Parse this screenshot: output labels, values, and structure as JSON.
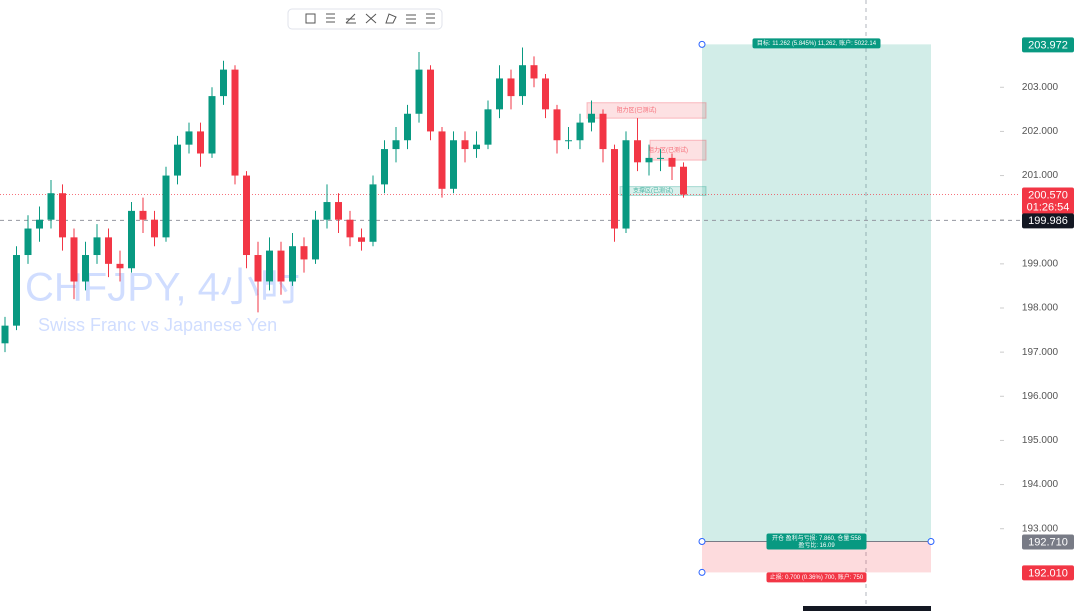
{
  "chart_data": {
    "type": "candlestick",
    "watermark_title": "CHFJPY, 4小时",
    "watermark_subtitle": "Swiss Franc vs Japanese Yen",
    "up_color": "#089981",
    "down_color": "#f23645",
    "open": [
      197.2,
      197.6,
      199.2,
      199.8,
      200.0,
      200.6,
      199.6,
      198.6,
      199.2,
      199.6,
      199.0,
      198.9,
      200.2,
      200.0,
      199.6,
      201.0,
      201.7,
      202.0,
      201.5,
      202.8,
      203.4,
      201.0,
      199.2,
      198.6,
      199.3,
      198.6,
      199.4,
      199.1,
      200.0,
      200.4,
      200.0,
      199.6,
      199.5,
      200.8,
      201.6,
      201.8,
      202.4,
      203.4,
      202.0,
      200.7,
      201.8,
      201.6,
      201.7,
      202.5,
      203.2,
      202.8,
      203.5,
      203.2,
      202.5,
      201.8,
      201.8,
      202.2,
      202.4,
      201.6,
      199.8,
      201.8,
      201.3,
      201.4,
      201.4,
      201.2
    ],
    "high": [
      197.8,
      199.4,
      200.1,
      200.3,
      200.9,
      200.8,
      199.8,
      199.5,
      199.9,
      199.8,
      199.3,
      200.4,
      200.5,
      200.2,
      201.2,
      201.9,
      202.2,
      202.2,
      203.0,
      203.6,
      203.5,
      201.1,
      199.5,
      199.6,
      199.5,
      199.7,
      199.6,
      200.2,
      200.8,
      200.6,
      200.2,
      199.8,
      201.0,
      201.8,
      202.1,
      202.6,
      203.8,
      203.5,
      202.1,
      202.0,
      202.0,
      202.0,
      202.7,
      203.5,
      203.4,
      203.9,
      203.7,
      203.3,
      202.6,
      202.1,
      202.4,
      202.7,
      202.5,
      201.7,
      202.0,
      202.3,
      201.7,
      201.6,
      201.5,
      201.3
    ],
    "low": [
      197.0,
      197.5,
      199.0,
      199.5,
      199.8,
      199.3,
      198.2,
      198.4,
      199.0,
      198.7,
      198.6,
      198.8,
      199.7,
      199.4,
      199.5,
      200.8,
      201.5,
      201.2,
      201.4,
      202.6,
      200.8,
      198.9,
      197.9,
      198.4,
      198.3,
      198.5,
      198.8,
      199.0,
      199.8,
      199.7,
      199.4,
      199.3,
      199.4,
      200.6,
      201.3,
      201.6,
      202.2,
      201.8,
      200.5,
      200.6,
      201.3,
      201.4,
      201.6,
      202.3,
      202.5,
      202.6,
      203.0,
      202.3,
      201.5,
      201.6,
      201.6,
      202.0,
      201.3,
      199.5,
      199.7,
      201.1,
      201.0,
      201.1,
      200.9,
      200.5
    ],
    "close": [
      197.6,
      199.2,
      199.8,
      200.0,
      200.6,
      199.6,
      198.6,
      199.2,
      199.6,
      199.0,
      198.9,
      200.2,
      200.0,
      199.6,
      201.0,
      201.7,
      202.0,
      201.5,
      202.8,
      203.4,
      201.0,
      199.2,
      198.6,
      199.3,
      198.6,
      199.4,
      199.1,
      200.0,
      200.4,
      200.0,
      199.6,
      199.5,
      200.8,
      201.6,
      201.8,
      202.4,
      203.4,
      202.0,
      200.7,
      201.8,
      201.6,
      201.7,
      202.5,
      203.2,
      202.8,
      203.5,
      203.2,
      202.5,
      201.8,
      201.8,
      202.2,
      202.4,
      201.6,
      199.8,
      201.8,
      201.3,
      201.4,
      201.4,
      201.2,
      200.57
    ],
    "ylim": [
      191.136,
      204.977
    ],
    "yticks": [
      {
        "value": 193,
        "label": "193.000"
      },
      {
        "value": 194,
        "label": "194.000"
      },
      {
        "value": 195,
        "label": "195.000"
      },
      {
        "value": 196,
        "label": "196.000"
      },
      {
        "value": 197,
        "label": "197.000"
      },
      {
        "value": 198,
        "label": "198.000"
      },
      {
        "value": 199,
        "label": "199.000"
      },
      {
        "value": 200,
        "label": "200.000"
      },
      {
        "value": 201,
        "label": "201.000"
      },
      {
        "value": 202,
        "label": "202.000"
      },
      {
        "value": 203,
        "label": "203.000"
      }
    ],
    "price_tags": [
      {
        "value": 203.972,
        "label": "203.972",
        "color": "#089981"
      },
      {
        "value": 200.57,
        "label": "200.570",
        "color": "#f23645"
      },
      {
        "value": 199.986,
        "label": "199.986",
        "color": "#131722"
      },
      {
        "value": 192.71,
        "label": "192.710",
        "color": "#787b86"
      },
      {
        "value": 192.01,
        "label": "192.010",
        "color": "#f23645"
      }
    ],
    "countdown": "01:26:54",
    "last_price": 200.57,
    "crosshair_price": 199.986,
    "position": {
      "target": 203.972,
      "entry": 192.71,
      "stop": 192.01,
      "target_label": "目标: 11.262 (5.845%) 11,262, 账户: 5022.14",
      "entry_label": "开仓 盈利与亏损: 7.860, 仓量:558",
      "ratio_label": "盈亏比: 16.09",
      "stop_label": "止损: 0.700 (0.36%) 700, 账户: 750"
    },
    "zones": [
      {
        "top": 202.65,
        "bottom": 202.3,
        "label": "阻力区(已测试)",
        "color": "#f23645"
      },
      {
        "top": 201.8,
        "bottom": 201.35,
        "label": "阻力区(已测试)",
        "color": "#f23645"
      },
      {
        "top": 200.75,
        "bottom": 200.55,
        "label": "支撑区(已测试)",
        "color": "#089981"
      }
    ]
  }
}
